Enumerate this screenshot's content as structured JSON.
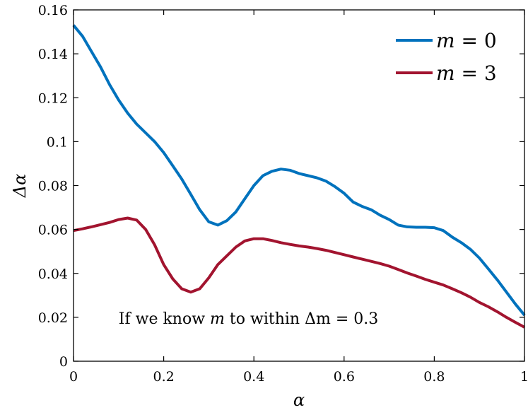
{
  "chart_data": {
    "type": "line",
    "title": "",
    "xlabel": "α",
    "ylabel": "Δα",
    "xlim": [
      0,
      1
    ],
    "ylim": [
      0,
      0.16
    ],
    "xticks": [
      0,
      0.2,
      0.4,
      0.6,
      0.8,
      1
    ],
    "xtick_labels": [
      "0",
      "0.2",
      "0.4",
      "0.6",
      "0.8",
      "1"
    ],
    "yticks": [
      0,
      0.02,
      0.04,
      0.06,
      0.08,
      0.1,
      0.12,
      0.14,
      0.16
    ],
    "ytick_labels": [
      "0",
      "0.02",
      "0.04",
      "0.06",
      "0.08",
      "0.1",
      "0.12",
      "0.14",
      "0.16"
    ],
    "grid": false,
    "legend_position": "top-right",
    "series": [
      {
        "name": "m = 0",
        "legend_var": "m",
        "legend_rest": " = 0",
        "color": "#0072BD",
        "x": [
          0,
          0.02,
          0.04,
          0.06,
          0.08,
          0.1,
          0.12,
          0.14,
          0.16,
          0.18,
          0.2,
          0.22,
          0.24,
          0.26,
          0.28,
          0.3,
          0.32,
          0.34,
          0.36,
          0.38,
          0.4,
          0.42,
          0.44,
          0.46,
          0.48,
          0.5,
          0.52,
          0.54,
          0.56,
          0.58,
          0.6,
          0.62,
          0.64,
          0.66,
          0.68,
          0.7,
          0.72,
          0.74,
          0.76,
          0.78,
          0.8,
          0.82,
          0.84,
          0.86,
          0.88,
          0.9,
          0.92,
          0.94,
          0.96,
          0.98,
          1.0
        ],
        "y": [
          0.153,
          0.148,
          0.141,
          0.134,
          0.126,
          0.119,
          0.113,
          0.108,
          0.104,
          0.1,
          0.095,
          0.089,
          0.083,
          0.076,
          0.069,
          0.0635,
          0.062,
          0.064,
          0.068,
          0.074,
          0.08,
          0.0845,
          0.0865,
          0.0875,
          0.087,
          0.0855,
          0.0845,
          0.0835,
          0.082,
          0.0795,
          0.0765,
          0.0725,
          0.0705,
          0.069,
          0.0665,
          0.0645,
          0.062,
          0.0612,
          0.061,
          0.061,
          0.0608,
          0.0595,
          0.0565,
          0.054,
          0.051,
          0.047,
          0.042,
          0.037,
          0.0315,
          0.026,
          0.021
        ]
      },
      {
        "name": "m = 3",
        "legend_var": "m",
        "legend_rest": " = 3",
        "color": "#A2142F",
        "x": [
          0,
          0.02,
          0.04,
          0.06,
          0.08,
          0.1,
          0.12,
          0.14,
          0.16,
          0.18,
          0.2,
          0.22,
          0.24,
          0.26,
          0.28,
          0.3,
          0.32,
          0.34,
          0.36,
          0.38,
          0.4,
          0.42,
          0.44,
          0.46,
          0.48,
          0.5,
          0.52,
          0.54,
          0.56,
          0.58,
          0.6,
          0.62,
          0.64,
          0.66,
          0.68,
          0.7,
          0.72,
          0.74,
          0.76,
          0.78,
          0.8,
          0.82,
          0.84,
          0.86,
          0.88,
          0.9,
          0.92,
          0.94,
          0.96,
          0.98,
          1.0
        ],
        "y": [
          0.0595,
          0.0603,
          0.0612,
          0.0622,
          0.0632,
          0.0645,
          0.0652,
          0.0643,
          0.06,
          0.053,
          0.044,
          0.0375,
          0.033,
          0.0315,
          0.033,
          0.038,
          0.044,
          0.048,
          0.052,
          0.0548,
          0.0558,
          0.0558,
          0.055,
          0.054,
          0.0532,
          0.0525,
          0.052,
          0.0513,
          0.0505,
          0.0495,
          0.0485,
          0.0475,
          0.0465,
          0.0455,
          0.0445,
          0.0433,
          0.0418,
          0.0402,
          0.0388,
          0.0373,
          0.036,
          0.0347,
          0.033,
          0.0312,
          0.0292,
          0.0268,
          0.0248,
          0.0225,
          0.02,
          0.0177,
          0.0155
        ]
      }
    ],
    "annotation": {
      "prefix": "If we know ",
      "var1": "m",
      "middle": " to within ",
      "var2": "Δm",
      "suffix": " = 0.3",
      "x": 0.1,
      "y": 0.017
    }
  }
}
